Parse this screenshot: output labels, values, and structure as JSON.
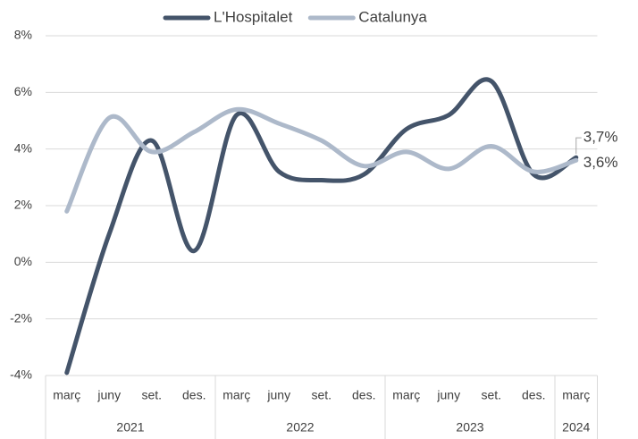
{
  "chart_data": {
    "type": "line",
    "categories": [
      "març",
      "juny",
      "set.",
      "des.",
      "març",
      "juny",
      "set.",
      "des.",
      "març",
      "juny",
      "set.",
      "des.",
      "març"
    ],
    "groups": [
      "2021",
      "2022",
      "2023",
      "2024"
    ],
    "group_sizes": [
      4,
      4,
      4,
      1
    ],
    "series": [
      {
        "name": "L'Hospitalet",
        "color": "#44546a",
        "values": [
          -3.9,
          1.0,
          4.3,
          0.4,
          5.2,
          3.2,
          2.9,
          3.1,
          4.7,
          5.2,
          6.4,
          3.1,
          3.7
        ],
        "value_labels": [
          null,
          null,
          null,
          null,
          null,
          null,
          null,
          null,
          null,
          null,
          null,
          null,
          "3,7%"
        ]
      },
      {
        "name": "Catalunya",
        "color": "#adb9ca",
        "values": [
          1.8,
          5.1,
          3.9,
          4.6,
          5.4,
          4.9,
          4.3,
          3.4,
          3.9,
          3.3,
          4.1,
          3.2,
          3.6
        ],
        "value_labels": [
          null,
          null,
          null,
          null,
          null,
          null,
          null,
          null,
          null,
          null,
          null,
          null,
          "3,6%"
        ]
      }
    ],
    "ylim": [
      -4,
      8
    ],
    "yticks": [
      {
        "value": -4,
        "label": "-4%"
      },
      {
        "value": -2,
        "label": "-2%"
      },
      {
        "value": 0,
        "label": "0%"
      },
      {
        "value": 2,
        "label": "2%"
      },
      {
        "value": 4,
        "label": "4%"
      },
      {
        "value": 6,
        "label": "6%"
      },
      {
        "value": 8,
        "label": "8%"
      }
    ],
    "grid": true,
    "legend": "top"
  }
}
